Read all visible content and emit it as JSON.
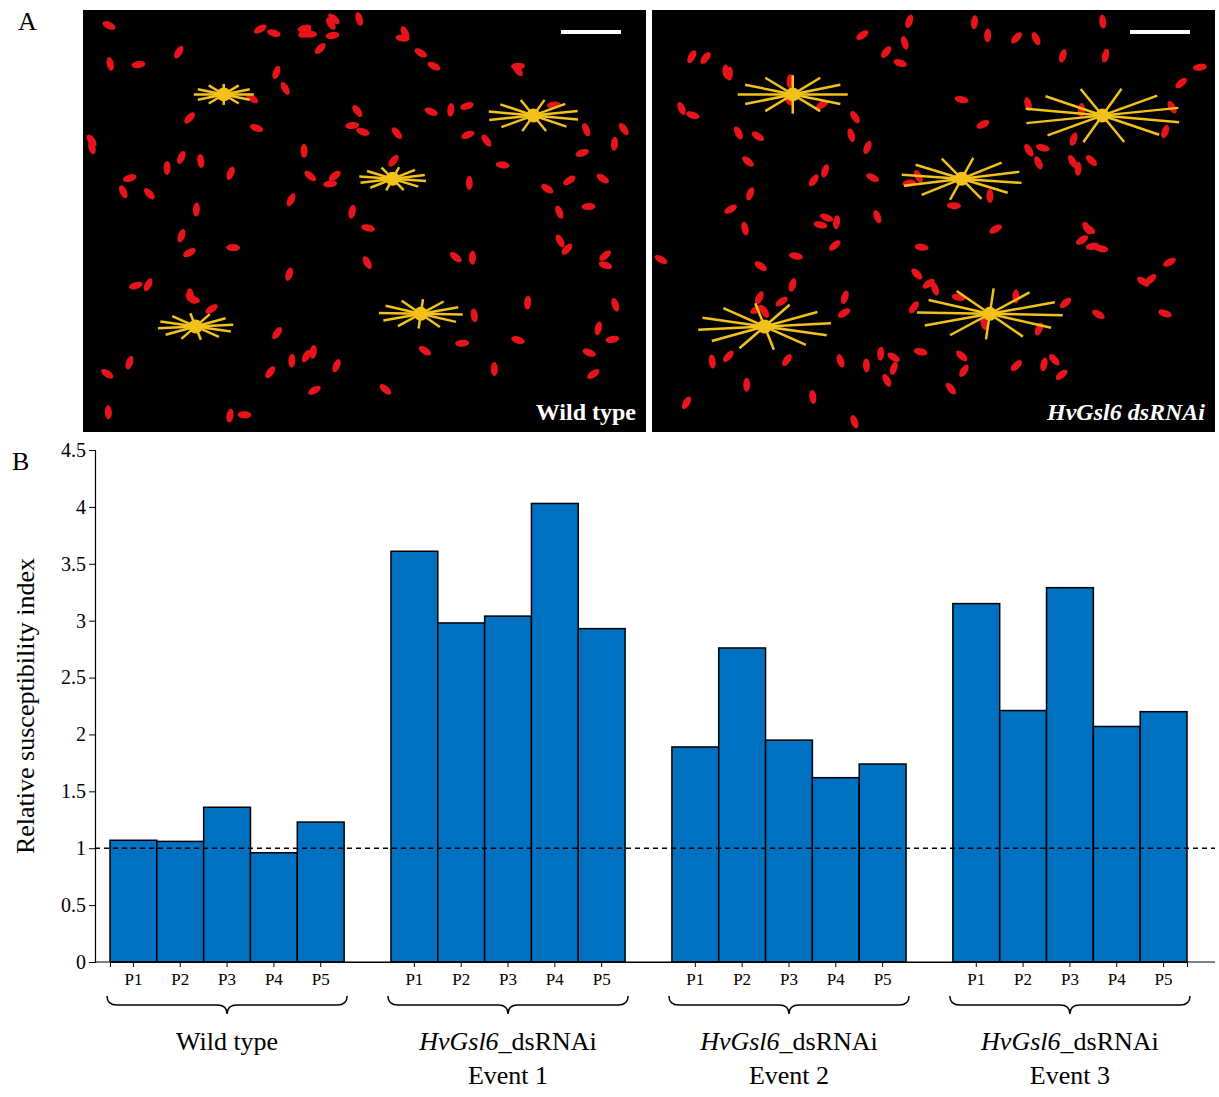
{
  "panel_letters": [
    "A",
    "B"
  ],
  "images": [
    {
      "label": "Wild type"
    },
    {
      "label": "HvGsl6  dsRNAi"
    }
  ],
  "chart_data": {
    "type": "bar",
    "y_label": "Relative susceptibility index",
    "color": "#0070c0",
    "ylim": [
      0,
      4.5
    ],
    "yticks": [
      0,
      0.5,
      1,
      1.5,
      2,
      2.5,
      3,
      3.5,
      4,
      4.5
    ],
    "reference_line": 1,
    "groups": [
      {
        "label": [
          "Wild type"
        ],
        "categories": [
          "P1",
          "P2",
          "P3",
          "P4",
          "P5"
        ],
        "values": [
          1.07,
          1.06,
          1.36,
          0.96,
          1.23
        ]
      },
      {
        "label": [
          "HvGsl6_dsRNAi",
          "Event 1"
        ],
        "categories": [
          "P1",
          "P2",
          "P3",
          "P4",
          "P5"
        ],
        "values": [
          3.61,
          2.98,
          3.04,
          4.03,
          2.93
        ]
      },
      {
        "label": [
          "HvGsl6_dsRNAi",
          "Event 2"
        ],
        "categories": [
          "P1",
          "P2",
          "P3",
          "P4",
          "P5"
        ],
        "values": [
          1.89,
          2.76,
          1.95,
          1.62,
          1.74
        ]
      },
      {
        "label": [
          "HvGsl6_dsRNAi",
          "Event 3"
        ],
        "categories": [
          "P1",
          "P2",
          "P3",
          "P4",
          "P5"
        ],
        "values": [
          3.15,
          2.21,
          3.29,
          2.07,
          2.2
        ]
      }
    ]
  }
}
